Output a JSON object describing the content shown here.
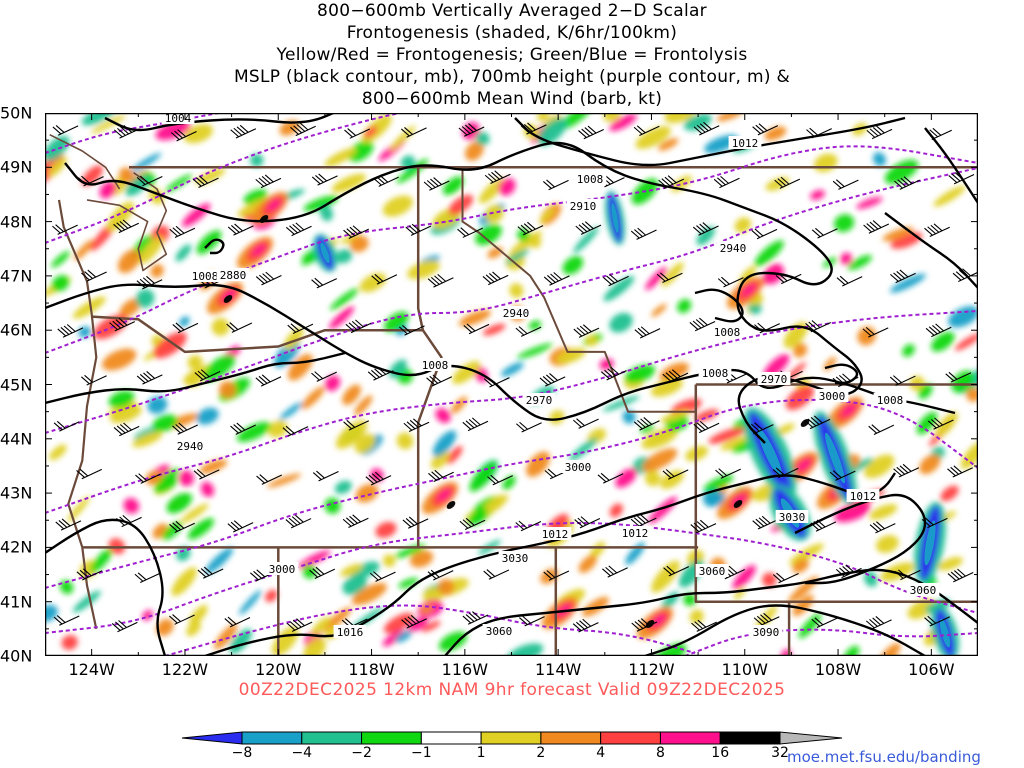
{
  "title": {
    "line1": "800−600mb Vertically Averaged 2−D Scalar",
    "line2": "Frontogenesis (shaded, K/6hr/100km)",
    "line3": "Yellow/Red = Frontogenesis;  Green/Blue = Frontolysis",
    "line4": "MSLP (black contour, mb), 700mb height (purple contour, m) &",
    "line5": "800−600mb Mean Wind (barb, kt)"
  },
  "axes": {
    "x_ticks": [
      "124W",
      "122W",
      "120W",
      "118W",
      "116W",
      "114W",
      "112W",
      "110W",
      "108W",
      "106W"
    ],
    "y_ticks": [
      "50N",
      "49N",
      "48N",
      "47N",
      "46N",
      "45N",
      "44N",
      "43N",
      "42N",
      "41N",
      "40N"
    ],
    "lon_range": [
      -125,
      -105
    ],
    "lat_range": [
      40,
      50
    ]
  },
  "valid_line": "00Z22DEC2025  12km  NAM  9hr  forecast  Valid  09Z22DEC2025",
  "colorbar": {
    "labels": [
      "−8",
      "−4",
      "−2",
      "−1",
      "1",
      "2",
      "4",
      "8",
      "16",
      "32"
    ],
    "colors": [
      "#2a2cf0",
      "#19a0c8",
      "#20c090",
      "#10d810",
      "#ffffff",
      "#e0d024",
      "#f08a20",
      "#ff4040",
      "#ff108c",
      "#000000",
      "#b8b8b8"
    ]
  },
  "contour_labels": {
    "mslp": [
      "1004",
      "1012",
      "1008",
      "1008",
      "1008",
      "1008",
      "1008",
      "1008",
      "1012",
      "1012",
      "1012",
      "1016"
    ],
    "height": [
      "2910",
      "2880",
      "2940",
      "2940",
      "2970",
      "2940",
      "2970",
      "3000",
      "3000",
      "3030",
      "3030",
      "3060",
      "3060",
      "3060",
      "3090",
      "3000"
    ]
  },
  "credit": "moe.met.fsu.edu/banding",
  "colors": {
    "mslp": "#000000",
    "height": "#a020d0",
    "borders": "#6b4a3a",
    "valid_text": "#ff5a5a",
    "credit": "#3a5bd9"
  }
}
